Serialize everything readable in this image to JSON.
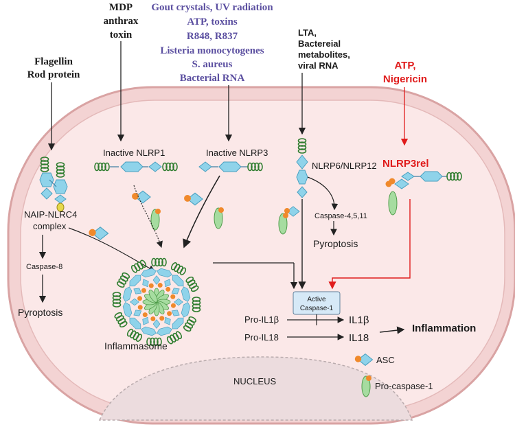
{
  "stimuli": {
    "flagellin": [
      "Flagellin",
      "Rod protein"
    ],
    "mdp": [
      "MDP",
      "anthrax",
      "toxin"
    ],
    "nlrp3_triggers": [
      "Gout crystals, UV radiation",
      "ATP, toxins",
      "R848, R837",
      "Listeria monocytogenes",
      "S. aureus",
      "Bacterial RNA"
    ],
    "lta": [
      "LTA,",
      "Bactereial",
      "metabolites,",
      "viral RNA"
    ],
    "atp_nig": [
      "ATP,",
      "Nigericin"
    ]
  },
  "labels": {
    "inactive_nlrp1": "Inactive NLRP1",
    "inactive_nlrp3": "Inactive NLRP3",
    "nlrp6_12": "NLRP6/NLRP12",
    "nlrp3rel": "NLRP3rel",
    "naip_1": "NAIP-NLRC4",
    "naip_2": "complex",
    "caspase8": "Caspase-8",
    "pyroptosis_left": "Pyroptosis",
    "caspase4511": "Caspase-4,5,11",
    "pyroptosis_right": "Pyroptosis",
    "inflammasome": "Inflammasome",
    "active_casp_1": "Active",
    "active_casp_2": "Caspase-1",
    "pro_il1b": "Pro-IL1β",
    "il1b": "IL1β",
    "pro_il18": "Pro-IL18",
    "il18": "IL18",
    "inflammation": "Inflammation",
    "nucleus": "NUCLEUS",
    "legend_asc": "ASC",
    "legend_procasp": "Pro-caspase-1"
  },
  "colors": {
    "cell_fill": "#fae5e5",
    "cell_border": "#dba9a9",
    "stimulus_purple": "#5b4fa0",
    "alert_red": "#e01b1b",
    "asc_blue": "#8fd3ea",
    "pro_casp_green": "#a6dca0",
    "helix_green": "#3a8a3a",
    "asc_orange": "#f0892b"
  }
}
